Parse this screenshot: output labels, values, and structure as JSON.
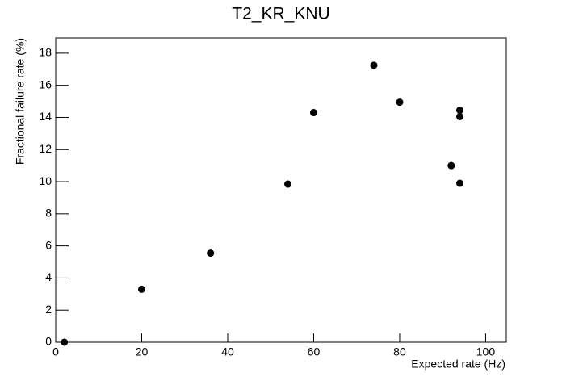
{
  "chart_data": {
    "type": "scatter",
    "title": "T2_KR_KNU",
    "x_label": "Expected rate (Hz)",
    "y_label": "Fractional failure rate (%)",
    "x": [
      2,
      20,
      36,
      54,
      60,
      74,
      80,
      92,
      94,
      94,
      94
    ],
    "values": [
      0,
      3.3,
      5.55,
      9.85,
      14.3,
      17.25,
      14.95,
      11.0,
      14.45,
      14.05,
      9.9
    ],
    "color": "#000000",
    "xlim": [
      0,
      104.8
    ],
    "xticks": [
      0,
      20,
      40,
      60,
      80,
      100
    ],
    "ylim": [
      0,
      18.95
    ],
    "yticks": [
      0,
      2,
      4,
      6,
      8,
      10,
      12,
      14,
      16,
      18
    ]
  }
}
